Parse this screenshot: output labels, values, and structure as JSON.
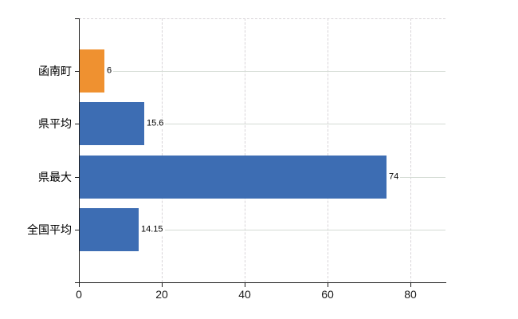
{
  "chart_data": {
    "type": "bar",
    "orientation": "horizontal",
    "title": "",
    "xlabel": "",
    "ylabel": "",
    "categories": [
      "函南町",
      "県平均",
      "県最大",
      "全国平均"
    ],
    "values": [
      6,
      15.6,
      74,
      14.15
    ],
    "value_labels": [
      "6",
      "15.6",
      "74",
      "14.15"
    ],
    "bar_colors": [
      "#ef9130",
      "#3d6db3",
      "#3d6db3",
      "#3d6db3"
    ],
    "xlim": [
      0,
      88.5
    ],
    "x_ticks": [
      0,
      20,
      40,
      60,
      80
    ],
    "x_tick_labels": [
      "0",
      "20",
      "40",
      "60",
      "80"
    ],
    "grid": "on",
    "legend": "none"
  },
  "style": {
    "background": "#ffffff",
    "axis_color": "#1c1c1c",
    "horizontal_grid_color": "#d4dcd4",
    "vertical_grid_color": "#d8d4d8",
    "highlight_bar_color": "#ef9130",
    "default_bar_color": "#3d6db3",
    "label_color": "#000000"
  }
}
